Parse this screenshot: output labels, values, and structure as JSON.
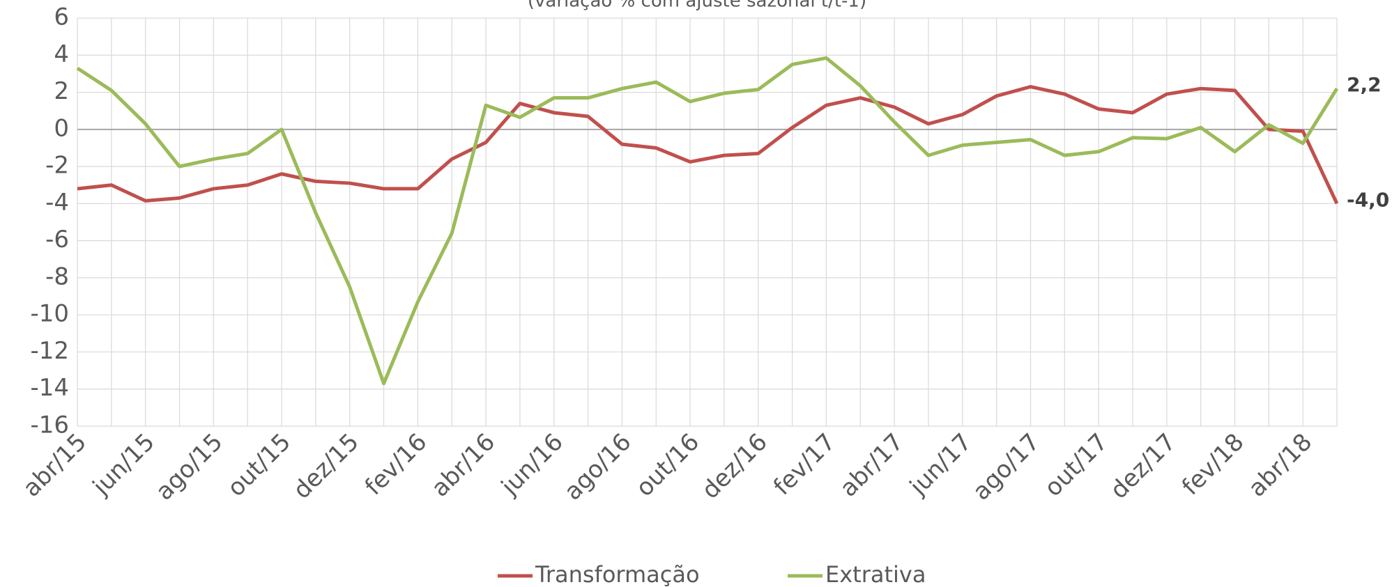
{
  "chart_data": {
    "type": "line",
    "title": "(variação % com ajuste sazonal t/t-1)",
    "categories": [
      "abr/15",
      null,
      "jun/15",
      null,
      "ago/15",
      null,
      "out/15",
      null,
      "dez/15",
      null,
      "fev/16",
      null,
      "abr/16",
      null,
      "jun/16",
      null,
      "ago/16",
      null,
      "out/16",
      null,
      "dez/16",
      null,
      "fev/17",
      null,
      "abr/17",
      null,
      "jun/17",
      null,
      "ago/17",
      null,
      "out/17",
      null,
      "dez/17",
      null,
      "fev/18",
      null,
      "abr/18",
      null
    ],
    "series": [
      {
        "name": "Transformação",
        "color": "#c0504d",
        "values": [
          -3.2,
          -3.0,
          -3.85,
          -3.7,
          -3.2,
          -3.0,
          -2.4,
          -2.8,
          -2.9,
          -3.2,
          -3.2,
          -1.6,
          -0.7,
          1.4,
          0.9,
          0.7,
          -0.8,
          -1.0,
          -1.75,
          -1.4,
          -1.3,
          0.1,
          1.3,
          1.7,
          1.2,
          0.3,
          0.8,
          1.8,
          2.3,
          1.9,
          1.1,
          0.9,
          1.9,
          2.2,
          2.1,
          0.0,
          -0.1,
          -4.0
        ],
        "value_labels": [
          null,
          null,
          null,
          null,
          null,
          null,
          null,
          null,
          null,
          null,
          null,
          null,
          null,
          null,
          null,
          null,
          null,
          null,
          null,
          null,
          null,
          null,
          null,
          null,
          null,
          null,
          null,
          null,
          null,
          null,
          null,
          null,
          null,
          null,
          null,
          null,
          null,
          "-4,0"
        ]
      },
      {
        "name": "Extrativa",
        "color": "#9bbb59",
        "values": [
          3.3,
          2.1,
          0.3,
          -2.0,
          -1.6,
          -1.3,
          0.0,
          -4.5,
          -8.5,
          -13.7,
          -9.3,
          -5.6,
          1.3,
          0.65,
          1.7,
          1.7,
          2.2,
          2.55,
          1.5,
          1.95,
          2.15,
          3.5,
          3.85,
          2.35,
          0.4,
          -1.4,
          -0.85,
          -0.7,
          -0.55,
          -1.4,
          -1.2,
          -0.45,
          -0.5,
          0.1,
          -1.2,
          0.25,
          -0.75,
          2.2
        ],
        "value_labels": [
          null,
          null,
          null,
          null,
          null,
          null,
          null,
          null,
          null,
          null,
          null,
          null,
          null,
          null,
          null,
          null,
          null,
          null,
          null,
          null,
          null,
          null,
          null,
          null,
          null,
          null,
          null,
          null,
          null,
          null,
          null,
          null,
          null,
          null,
          null,
          null,
          null,
          "2,2"
        ]
      }
    ],
    "ylim": [
      -16,
      6
    ],
    "yticks": [
      -16,
      -14,
      -12,
      -10,
      -8,
      -6,
      -4,
      -2,
      0,
      2,
      4,
      6
    ],
    "grid": true,
    "legend": "bottom"
  }
}
